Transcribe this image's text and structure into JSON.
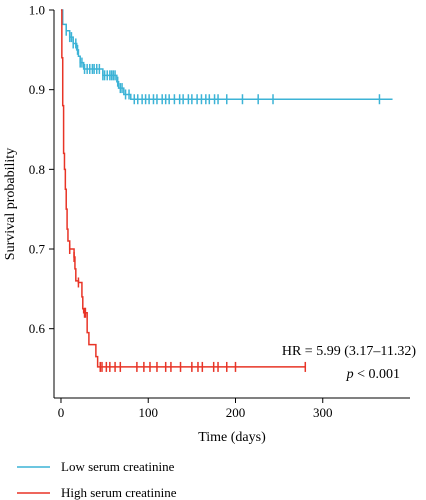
{
  "chart_data": {
    "type": "line",
    "subtype": "kaplan-meier",
    "title": "",
    "xlabel": "Time (days)",
    "ylabel": "Survival probability",
    "xlim": [
      -8,
      400
    ],
    "ylim": [
      0.513,
      1.0
    ],
    "xticks": [
      0,
      100,
      200,
      300
    ],
    "xtick_labels": [
      "0",
      "100",
      "200",
      "300"
    ],
    "yticks": [
      0.6,
      0.7,
      0.8,
      0.9,
      1.0
    ],
    "ytick_labels": [
      "0.6",
      "0.7",
      "0.8",
      "0.9",
      "1.0"
    ],
    "grid": false,
    "legend_position": "bottom",
    "annotations": {
      "hr": "HR = 5.99 (3.17–11.32)",
      "p_label": "p",
      "p_value": " < 0.001"
    },
    "series": [
      {
        "name": "Low serum creatinine",
        "color": "#3cb3d6",
        "steps": [
          [
            0,
            1.0
          ],
          [
            2,
            0.982
          ],
          [
            6,
            0.974
          ],
          [
            10,
            0.966
          ],
          [
            14,
            0.958
          ],
          [
            18,
            0.95
          ],
          [
            20,
            0.942
          ],
          [
            22,
            0.934
          ],
          [
            26,
            0.926
          ],
          [
            48,
            0.918
          ],
          [
            64,
            0.91
          ],
          [
            66,
            0.902
          ],
          [
            72,
            0.894
          ],
          [
            80,
            0.888
          ],
          [
            380,
            0.888
          ]
        ],
        "censor": [
          6,
          10,
          12,
          14,
          17,
          19,
          22,
          24,
          27,
          30,
          33,
          36,
          38,
          41,
          44,
          48,
          50,
          53,
          56,
          58,
          60,
          62,
          65,
          68,
          70,
          74,
          78,
          84,
          88,
          93,
          97,
          101,
          106,
          110,
          116,
          120,
          124,
          130,
          136,
          140,
          146,
          150,
          156,
          161,
          166,
          170,
          176,
          180,
          190,
          208,
          226,
          243,
          365
        ]
      },
      {
        "name": "High serum creatinine",
        "color": "#e83426",
        "steps": [
          [
            0,
            1.0
          ],
          [
            1,
            0.94
          ],
          [
            2,
            0.88
          ],
          [
            3,
            0.82
          ],
          [
            4,
            0.8
          ],
          [
            5,
            0.775
          ],
          [
            6,
            0.75
          ],
          [
            7,
            0.725
          ],
          [
            8,
            0.71
          ],
          [
            10,
            0.7
          ],
          [
            15,
            0.69
          ],
          [
            16,
            0.675
          ],
          [
            17,
            0.66
          ],
          [
            20,
            0.658
          ],
          [
            24,
            0.64
          ],
          [
            25,
            0.625
          ],
          [
            26,
            0.62
          ],
          [
            30,
            0.595
          ],
          [
            32,
            0.58
          ],
          [
            36,
            0.58
          ],
          [
            40,
            0.565
          ],
          [
            42,
            0.552
          ],
          [
            280,
            0.552
          ]
        ],
        "censor": [
          10,
          15,
          20,
          27,
          28,
          45,
          47,
          52,
          56,
          62,
          68,
          87,
          95,
          102,
          110,
          120,
          126,
          137,
          150,
          157,
          162,
          175,
          180,
          190,
          200,
          280
        ]
      }
    ]
  }
}
